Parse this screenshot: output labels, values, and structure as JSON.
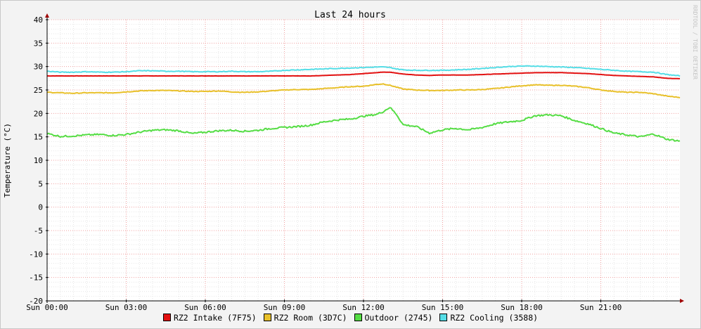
{
  "chart_data": {
    "type": "line",
    "title": "Last 24 hours",
    "ylabel": "Temperature (°C)",
    "xlabel": "",
    "watermark": "RRDTOOL / TOBI OETIKER",
    "ylim": [
      -20,
      40
    ],
    "xlim": [
      0,
      24
    ],
    "y_ticks": [
      -20,
      -15,
      -10,
      -5,
      0,
      5,
      10,
      15,
      20,
      25,
      30,
      35,
      40
    ],
    "x_ticks": [
      {
        "value": 0,
        "label": "Sun 00:00"
      },
      {
        "value": 3,
        "label": "Sun 03:00"
      },
      {
        "value": 6,
        "label": "Sun 06:00"
      },
      {
        "value": 9,
        "label": "Sun 09:00"
      },
      {
        "value": 12,
        "label": "Sun 12:00"
      },
      {
        "value": 15,
        "label": "Sun 15:00"
      },
      {
        "value": 18,
        "label": "Sun 18:00"
      },
      {
        "value": 21,
        "label": "Sun 21:00"
      }
    ],
    "grid": true,
    "legend_position": "bottom",
    "x": [
      0,
      0.5,
      1,
      1.5,
      2,
      2.5,
      3,
      3.5,
      4,
      4.5,
      5,
      5.5,
      6,
      6.5,
      7,
      7.5,
      8,
      8.5,
      9,
      9.5,
      10,
      10.5,
      11,
      11.5,
      12,
      12.5,
      12.75,
      13,
      13.25,
      13.5,
      14,
      14.5,
      15,
      15.5,
      16,
      16.5,
      17,
      17.5,
      18,
      18.5,
      19,
      19.5,
      20,
      20.5,
      21,
      21.5,
      22,
      22.5,
      23,
      23.5,
      24
    ],
    "series": [
      {
        "name": "RZ2 Intake (7F75)",
        "color": "#e21010",
        "values": [
          28.0,
          28.0,
          28.0,
          28.0,
          28.0,
          28.0,
          28.0,
          28.0,
          28.0,
          28.0,
          28.0,
          28.0,
          28.0,
          28.0,
          28.0,
          28.0,
          28.0,
          28.0,
          28.0,
          28.0,
          28.0,
          28.1,
          28.2,
          28.3,
          28.5,
          28.7,
          28.8,
          28.8,
          28.6,
          28.4,
          28.2,
          28.1,
          28.2,
          28.2,
          28.2,
          28.3,
          28.4,
          28.5,
          28.6,
          28.7,
          28.7,
          28.7,
          28.6,
          28.5,
          28.3,
          28.1,
          28.0,
          27.9,
          27.8,
          27.5,
          27.4
        ]
      },
      {
        "name": "RZ2 Room (3D7C)",
        "color": "#e8c02a",
        "values": [
          24.5,
          24.4,
          24.3,
          24.4,
          24.4,
          24.4,
          24.6,
          24.8,
          24.9,
          24.9,
          24.8,
          24.7,
          24.7,
          24.8,
          24.6,
          24.5,
          24.6,
          24.8,
          25.0,
          25.1,
          25.1,
          25.3,
          25.5,
          25.7,
          25.8,
          26.2,
          26.3,
          26.0,
          25.6,
          25.2,
          25.0,
          24.9,
          24.9,
          25.0,
          25.0,
          25.1,
          25.3,
          25.6,
          25.9,
          26.1,
          26.0,
          26.0,
          25.8,
          25.5,
          25.0,
          24.7,
          24.5,
          24.5,
          24.2,
          23.7,
          23.4
        ]
      },
      {
        "name": "Outdoor (2745)",
        "color": "#55dd44",
        "values": [
          15.7,
          15.1,
          15.2,
          15.4,
          15.5,
          15.3,
          15.5,
          16.0,
          16.4,
          16.5,
          16.3,
          15.7,
          16.0,
          16.3,
          16.4,
          16.2,
          16.4,
          16.8,
          17.0,
          17.2,
          17.5,
          18.2,
          18.6,
          18.8,
          19.4,
          19.8,
          20.4,
          21.3,
          19.8,
          17.6,
          17.2,
          15.8,
          16.5,
          16.8,
          16.5,
          17.0,
          17.8,
          18.2,
          18.5,
          19.5,
          19.7,
          19.5,
          18.5,
          17.8,
          16.8,
          15.8,
          15.4,
          15.0,
          15.6,
          14.5,
          14.1
        ]
      },
      {
        "name": "RZ2 Cooling (3588)",
        "color": "#55dde6",
        "values": [
          29.0,
          28.8,
          28.8,
          28.9,
          28.8,
          28.8,
          28.9,
          29.1,
          29.1,
          29.0,
          29.0,
          28.9,
          28.9,
          28.9,
          29.0,
          28.9,
          28.9,
          29.0,
          29.2,
          29.3,
          29.4,
          29.5,
          29.6,
          29.7,
          29.8,
          29.9,
          29.9,
          29.8,
          29.5,
          29.3,
          29.2,
          29.2,
          29.2,
          29.3,
          29.4,
          29.6,
          29.8,
          30.0,
          30.1,
          30.1,
          30.0,
          29.9,
          29.8,
          29.6,
          29.4,
          29.2,
          29.0,
          28.9,
          28.8,
          28.3,
          28.0
        ]
      }
    ]
  }
}
